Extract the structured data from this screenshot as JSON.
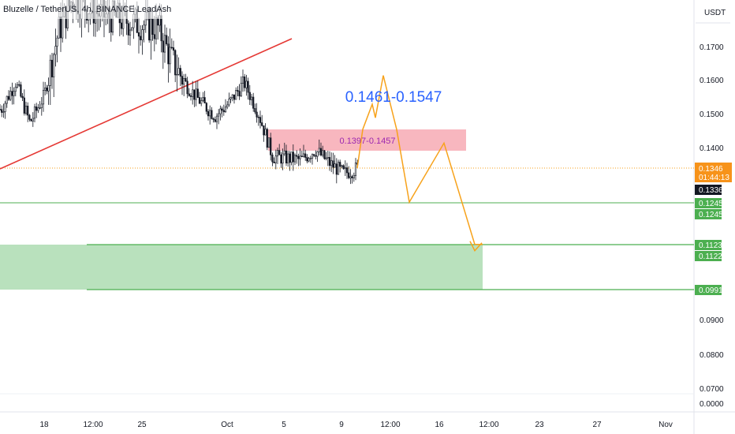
{
  "header": {
    "symbol_line": "Bluzelle / TetherUS, 4h, BINANCE  LeadAsh"
  },
  "price_axis": {
    "currency": "USDT",
    "ticks": [
      "0.1700",
      "0.1600",
      "0.1500",
      "0.1400",
      "0.0900",
      "0.0800",
      "0.0700",
      "0.0000"
    ]
  },
  "badges": [
    {
      "text": "0.1346",
      "sub": "01:44:13",
      "price": 0.1346,
      "color": "#f7931a"
    },
    {
      "text": "0.1336",
      "price": 0.1336,
      "color": "#131722"
    },
    {
      "text": "0.1245",
      "price": 0.1245,
      "color": "#4caf50"
    },
    {
      "text": "0.1245",
      "price": 0.1245,
      "color": "#4caf50"
    },
    {
      "text": "0.1123",
      "price": 0.1123,
      "color": "#4caf50"
    },
    {
      "text": "0.1122",
      "price": 0.1122,
      "color": "#4caf50"
    },
    {
      "text": "0.0991",
      "price": 0.0991,
      "color": "#4caf50"
    }
  ],
  "time_axis": {
    "labels": [
      "18",
      "12:00",
      "25",
      "Oct",
      "5",
      "9",
      "12:00",
      "16",
      "12:00",
      "23",
      "27",
      "Nov"
    ]
  },
  "annotations": {
    "target_label": "0.1461-0.1547",
    "resistance_label": "0.1397-0.1457"
  },
  "colors": {
    "up": "#089981",
    "down": "#f23645",
    "candle": "#131722",
    "trendline": "#e53935",
    "projection": "#f7a21b",
    "resistance_zone": "#f8b7bf",
    "support_zone": "#b9e1bd",
    "support_line": "#4caf50",
    "target_text": "#2962ff",
    "resistance_text": "#9c27b0"
  },
  "chart_data": {
    "type": "candlestick",
    "symbol": "Bluzelle / TetherUS",
    "timeframe": "4h",
    "exchange": "BINANCE",
    "author": "LeadAsh",
    "ylim": [
      0.068,
      0.179
    ],
    "current_price": 0.1346,
    "price_path": [
      [
        "Sep 15",
        0.152
      ],
      [
        "Sep 16",
        0.16
      ],
      [
        "Sep 17",
        0.148
      ],
      [
        "Sep 18",
        0.156
      ],
      [
        "Sep 19",
        0.175
      ],
      [
        "Sep 20",
        0.185
      ],
      [
        "Sep 22",
        0.18
      ],
      [
        "Sep 24",
        0.178
      ],
      [
        "Sep 26",
        0.176
      ],
      [
        "Sep 27",
        0.166
      ],
      [
        "Sep 28",
        0.159
      ],
      [
        "Sep 29",
        0.154
      ],
      [
        "Sep 30",
        0.15
      ],
      [
        "Oct 1",
        0.154
      ],
      [
        "Oct 2",
        0.16
      ],
      [
        "Oct 3",
        0.151
      ],
      [
        "Oct 4",
        0.138
      ],
      [
        "Oct 6",
        0.137
      ],
      [
        "Oct 7",
        0.14
      ],
      [
        "Oct 8",
        0.136
      ],
      [
        "Oct 9",
        0.133
      ],
      [
        "Oct 10",
        0.1346
      ]
    ],
    "zones": [
      {
        "kind": "resistance",
        "from": 0.1397,
        "to": 0.1457
      },
      {
        "kind": "support",
        "from": 0.0991,
        "to": 0.1123
      }
    ],
    "levels": [
      0.1245,
      0.1123,
      0.0991
    ],
    "projection_path": [
      0.1346,
      0.1461,
      0.1535,
      0.1495,
      0.162,
      0.146,
      0.1245,
      0.142,
      0.112,
      0.112
    ],
    "trendline": {
      "from": 0.136,
      "to": 0.1725
    }
  }
}
